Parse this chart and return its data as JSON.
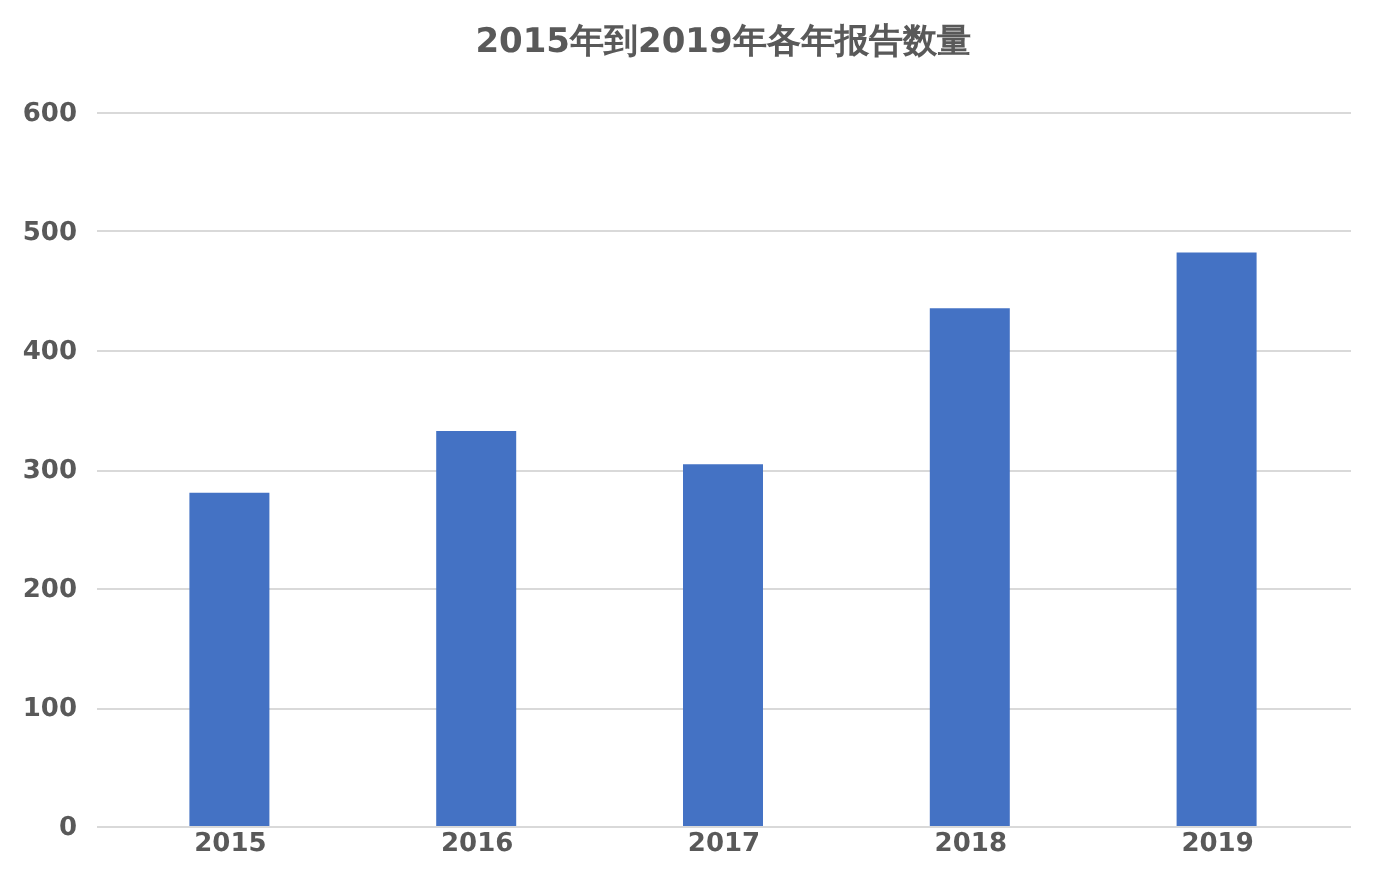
{
  "chart_data": {
    "type": "bar",
    "title": "2015年到2019年各年报告数量",
    "categories": [
      "2015",
      "2016",
      "2017",
      "2018",
      "2019"
    ],
    "values": [
      280,
      332,
      304,
      435,
      482
    ],
    "color": "#4472c4",
    "ylim": [
      0,
      600
    ],
    "yticks": [
      0,
      100,
      200,
      300,
      400,
      500,
      600
    ],
    "grid": "y"
  }
}
